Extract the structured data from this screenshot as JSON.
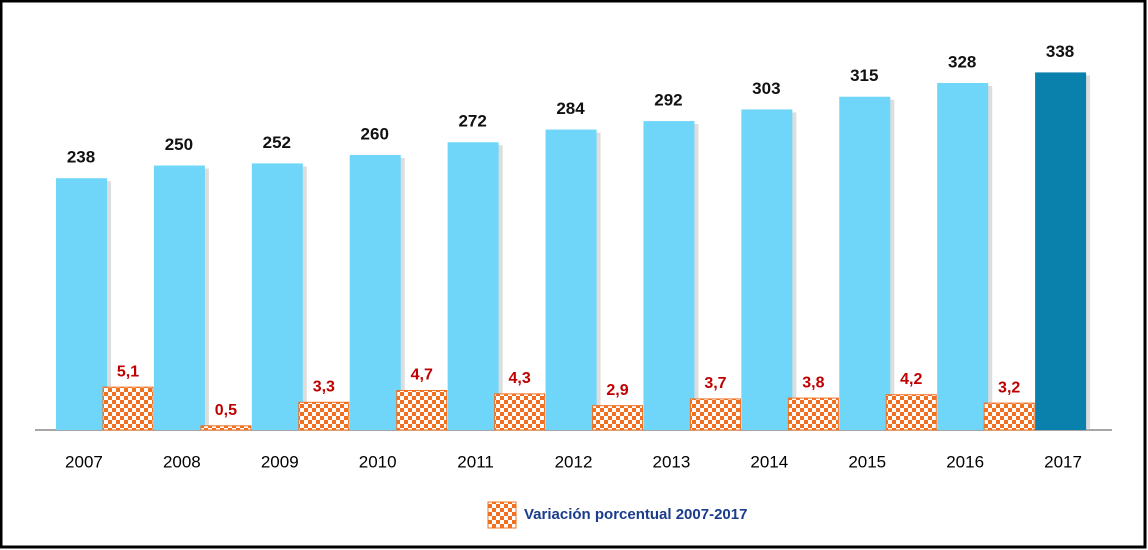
{
  "chart_data": {
    "type": "bar",
    "categories": [
      "2007",
      "2008",
      "2009",
      "2010",
      "2011",
      "2012",
      "2013",
      "2014",
      "2015",
      "2016",
      "2017"
    ],
    "series": [
      {
        "values": [
          238,
          250,
          252,
          260,
          272,
          284,
          292,
          303,
          315,
          328,
          338
        ],
        "colors": [
          "#6fd6fa",
          "#6fd6fa",
          "#6fd6fa",
          "#6fd6fa",
          "#6fd6fa",
          "#6fd6fa",
          "#6fd6fa",
          "#6fd6fa",
          "#6fd6fa",
          "#6fd6fa",
          "#0a80ad"
        ]
      },
      {
        "name": "Variación porcentual 2007-2017",
        "color": "#f07020",
        "axis": "y2",
        "values": [
          5.1,
          0.5,
          3.3,
          4.7,
          4.3,
          2.9,
          3.7,
          3.8,
          4.2,
          3.2,
          null
        ],
        "value_labels": [
          "5,1",
          "0,5",
          "3,3",
          "4,7",
          "4,3",
          "2,9",
          "3,7",
          "3,8",
          "4,2",
          "3,2",
          null
        ]
      }
    ],
    "ylim": [
      0,
      397
    ],
    "y2lim": [
      0,
      50
    ],
    "legend": "bottom"
  }
}
